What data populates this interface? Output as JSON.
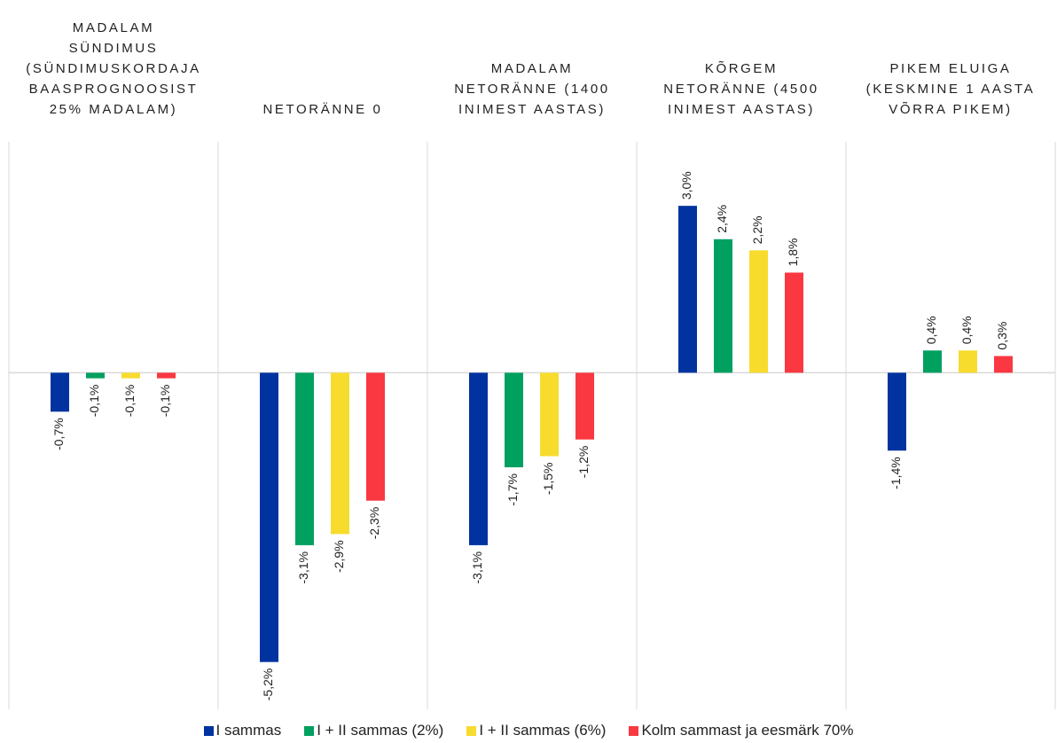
{
  "chart_data": {
    "type": "bar",
    "categories": [
      "MADALAM\nSÜNDIMUS\n(SÜNDIMUSKORDAJA\nBAASPROGNOOSIST\n25% MADALAM)",
      "NETORÄNNE 0",
      "MADALAM\nNETORÄNNE (1400\nINIMEST AASTAS)",
      "KÕRGEM\nNETORÄNNE (4500\nINIMEST AASTAS)",
      "PIKEM ELUIGA\n(KESKMINE 1 AASTA\nVÕRRA PIKEM)"
    ],
    "series": [
      {
        "name": "I sammas",
        "color": "#0033a0",
        "values": [
          -0.7,
          -5.2,
          -3.1,
          3.0,
          -1.4
        ],
        "value_labels": [
          "-0,7%",
          "-5,2%",
          "-3,1%",
          "3,0%",
          "-1,4%"
        ]
      },
      {
        "name": "I + II sammas (2%)",
        "color": "#00a060",
        "values": [
          -0.1,
          -3.1,
          -1.7,
          2.4,
          0.4
        ],
        "value_labels": [
          "-0,1%",
          "-3,1%",
          "-1,7%",
          "2,4%",
          "0,4%"
        ]
      },
      {
        "name": "I + II sammas (6%)",
        "color": "#f7dc2e",
        "values": [
          -0.1,
          -2.9,
          -1.5,
          2.2,
          0.4
        ],
        "value_labels": [
          "-0,1%",
          "-2,9%",
          "-1,5%",
          "2,2%",
          "0,4%"
        ]
      },
      {
        "name": "Kolm sammast ja eesmärk 70%",
        "color": "#f93841",
        "values": [
          -0.1,
          -2.3,
          -1.2,
          1.8,
          0.3
        ],
        "value_labels": [
          "-0,1%",
          "-2,3%",
          "-1,2%",
          "1,8%",
          "0,3%"
        ]
      }
    ],
    "ylim": [
      -6.05,
      4.15
    ],
    "legend": "bottom"
  }
}
